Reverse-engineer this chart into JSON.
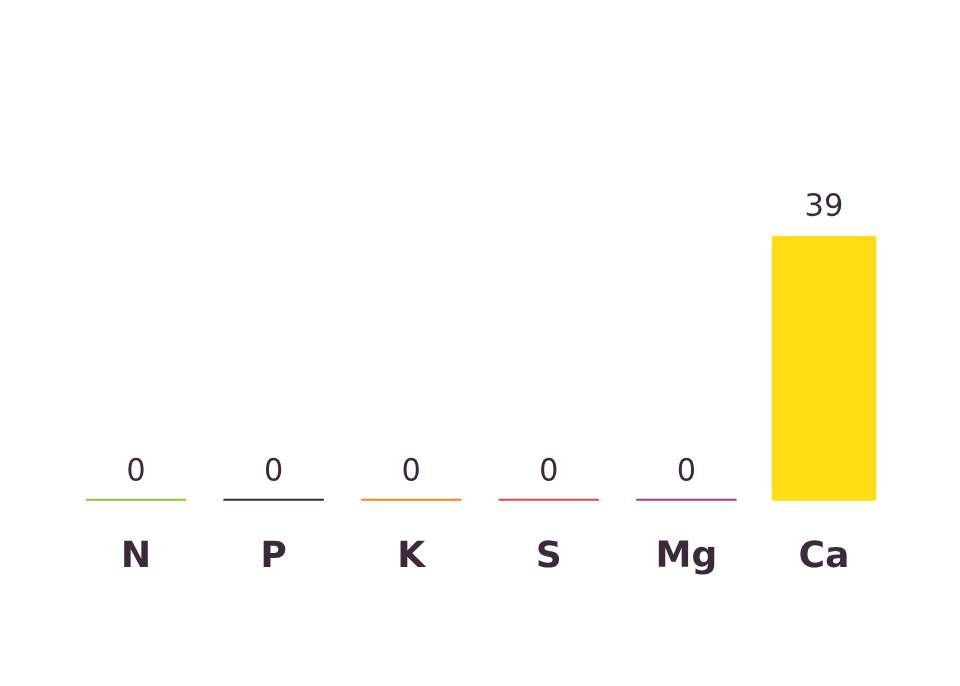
{
  "chart_data": {
    "type": "bar",
    "categories": [
      "N",
      "P",
      "K",
      "S",
      "Mg",
      "Ca"
    ],
    "values": [
      0,
      0,
      0,
      0,
      0,
      39
    ],
    "colors": [
      "#8dc63f",
      "#3b2a3a",
      "#f0872a",
      "#e2474b",
      "#9b3fa3",
      "#ffdd17"
    ],
    "data_labels": true,
    "grid": false,
    "legend": false
  }
}
